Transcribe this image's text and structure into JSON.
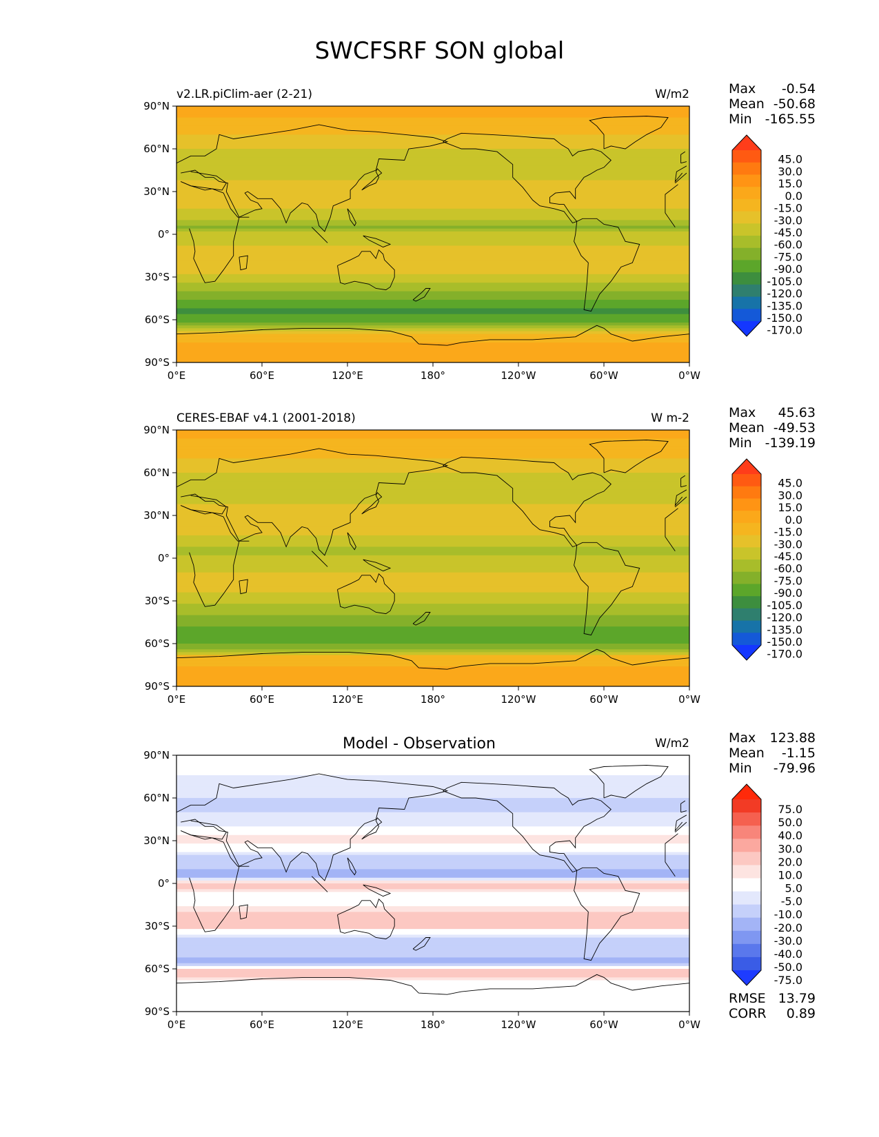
{
  "title": "SWCFSRF SON global",
  "panels": [
    {
      "left_title": "v2.LR.piClim-aer (2-21)",
      "center_title": "",
      "units": "W/m2",
      "stats": [
        {
          "label": "Max",
          "value": "-0.54"
        },
        {
          "label": "Mean",
          "value": "-50.68"
        },
        {
          "label": "Min",
          "value": "-165.55"
        }
      ],
      "colorbar_labels": [
        "45.0",
        "30.0",
        "15.0",
        "0.0",
        "-15.0",
        "-30.0",
        "-45.0",
        "-60.0",
        "-75.0",
        "-90.0",
        "-105.0",
        "-120.0",
        "-135.0",
        "-150.0",
        "-170.0"
      ],
      "colorbar_colors": [
        "#ff3d1a",
        "#ff5a12",
        "#ff7a10",
        "#ff9414",
        "#fba81a",
        "#f5b51f",
        "#e6c12a",
        "#c9c42a",
        "#a8bd2a",
        "#84b02a",
        "#5ca62a",
        "#3d8e3e",
        "#2f7f6e",
        "#1773a8",
        "#1459d8",
        "#1437ff"
      ]
    },
    {
      "left_title": "CERES-EBAF v4.1 (2001-2018)",
      "center_title": "",
      "units": "W m-2",
      "stats": [
        {
          "label": "Max",
          "value": "45.63"
        },
        {
          "label": "Mean",
          "value": "-49.53"
        },
        {
          "label": "Min",
          "value": "-139.19"
        }
      ],
      "colorbar_labels": [
        "45.0",
        "30.0",
        "15.0",
        "0.0",
        "-15.0",
        "-30.0",
        "-45.0",
        "-60.0",
        "-75.0",
        "-90.0",
        "-105.0",
        "-120.0",
        "-135.0",
        "-150.0",
        "-170.0"
      ],
      "colorbar_colors": [
        "#ff3d1a",
        "#ff5a12",
        "#ff7a10",
        "#ff9414",
        "#fba81a",
        "#f5b51f",
        "#e6c12a",
        "#c9c42a",
        "#a8bd2a",
        "#84b02a",
        "#5ca62a",
        "#3d8e3e",
        "#2f7f6e",
        "#1773a8",
        "#1459d8",
        "#1437ff"
      ]
    },
    {
      "left_title": "",
      "center_title": "Model - Observation",
      "units": "W/m2",
      "stats": [
        {
          "label": "Max",
          "value": "123.88"
        },
        {
          "label": "Mean",
          "value": "-1.15"
        },
        {
          "label": "Min",
          "value": "-79.96"
        }
      ],
      "colorbar_labels": [
        "75.0",
        "50.0",
        "40.0",
        "30.0",
        "20.0",
        "10.0",
        "5.0",
        "-5.0",
        "-10.0",
        "-20.0",
        "-30.0",
        "-40.0",
        "-50.0",
        "-75.0"
      ],
      "colorbar_colors": [
        "#ff2a0a",
        "#f23b25",
        "#f5604f",
        "#f8857a",
        "#fba89f",
        "#fcc8c2",
        "#fde4e1",
        "#ffffff",
        "#e3e8fc",
        "#c5d0fa",
        "#a3b4f6",
        "#7f97f1",
        "#5a78ec",
        "#3a5ce6",
        "#1e3cff"
      ]
    }
  ],
  "bottom_stats": [
    {
      "label": "RMSE",
      "value": "13.79"
    },
    {
      "label": "CORR",
      "value": "0.89"
    }
  ],
  "axes": {
    "x_ticks": [
      "0°E",
      "60°E",
      "120°E",
      "180°",
      "120°W",
      "60°W",
      "0°W"
    ],
    "y_ticks": [
      "90°N",
      "60°N",
      "30°N",
      "0°",
      "30°S",
      "60°S",
      "90°S"
    ]
  },
  "chart_data": [
    {
      "type": "heatmap",
      "title": "v2.LR.piClim-aer (2-21)",
      "units": "W/m2",
      "xlim": [
        0,
        360
      ],
      "ylim": [
        -90,
        90
      ],
      "zonal_profile": {
        "lat": [
          90,
          75,
          60,
          50,
          40,
          30,
          20,
          10,
          5,
          0,
          -5,
          -10,
          -20,
          -30,
          -40,
          -50,
          -55,
          -60,
          -65,
          -70,
          -80,
          -90
        ],
        "value": [
          -10,
          -20,
          -45,
          -55,
          -50,
          -30,
          -40,
          -60,
          -75,
          -55,
          -50,
          -40,
          -30,
          -50,
          -75,
          -100,
          -110,
          -95,
          -70,
          -20,
          -10,
          -5
        ]
      },
      "max": -0.54,
      "mean": -50.68,
      "min": -165.55
    },
    {
      "type": "heatmap",
      "title": "CERES-EBAF v4.1 (2001-2018)",
      "units": "W m-2",
      "xlim": [
        0,
        360
      ],
      "ylim": [
        -90,
        90
      ],
      "zonal_profile": {
        "lat": [
          90,
          75,
          60,
          50,
          40,
          30,
          20,
          10,
          5,
          0,
          -5,
          -10,
          -20,
          -30,
          -40,
          -50,
          -55,
          -60,
          -65,
          -70,
          -80,
          -90
        ],
        "value": [
          -10,
          -22,
          -45,
          -55,
          -50,
          -30,
          -35,
          -55,
          -70,
          -55,
          -50,
          -45,
          -35,
          -55,
          -75,
          -95,
          -100,
          -90,
          -65,
          -20,
          -10,
          -5
        ]
      },
      "max": 45.63,
      "mean": -49.53,
      "min": -139.19
    },
    {
      "type": "heatmap",
      "title": "Model - Observation",
      "units": "W/m2",
      "xlim": [
        0,
        360
      ],
      "ylim": [
        -90,
        90
      ],
      "zonal_profile": {
        "lat": [
          90,
          75,
          60,
          50,
          40,
          30,
          20,
          10,
          5,
          0,
          -5,
          -10,
          -20,
          -30,
          -40,
          -50,
          -55,
          -60,
          -65,
          -70,
          -80,
          -90
        ],
        "value": [
          0,
          -5,
          -10,
          -10,
          -5,
          10,
          -10,
          -20,
          -25,
          15,
          10,
          -5,
          10,
          15,
          -20,
          -15,
          -25,
          10,
          15,
          0,
          0,
          0
        ]
      },
      "max": 123.88,
      "mean": -1.15,
      "min": -79.96,
      "rmse": 13.79,
      "corr": 0.89
    }
  ]
}
